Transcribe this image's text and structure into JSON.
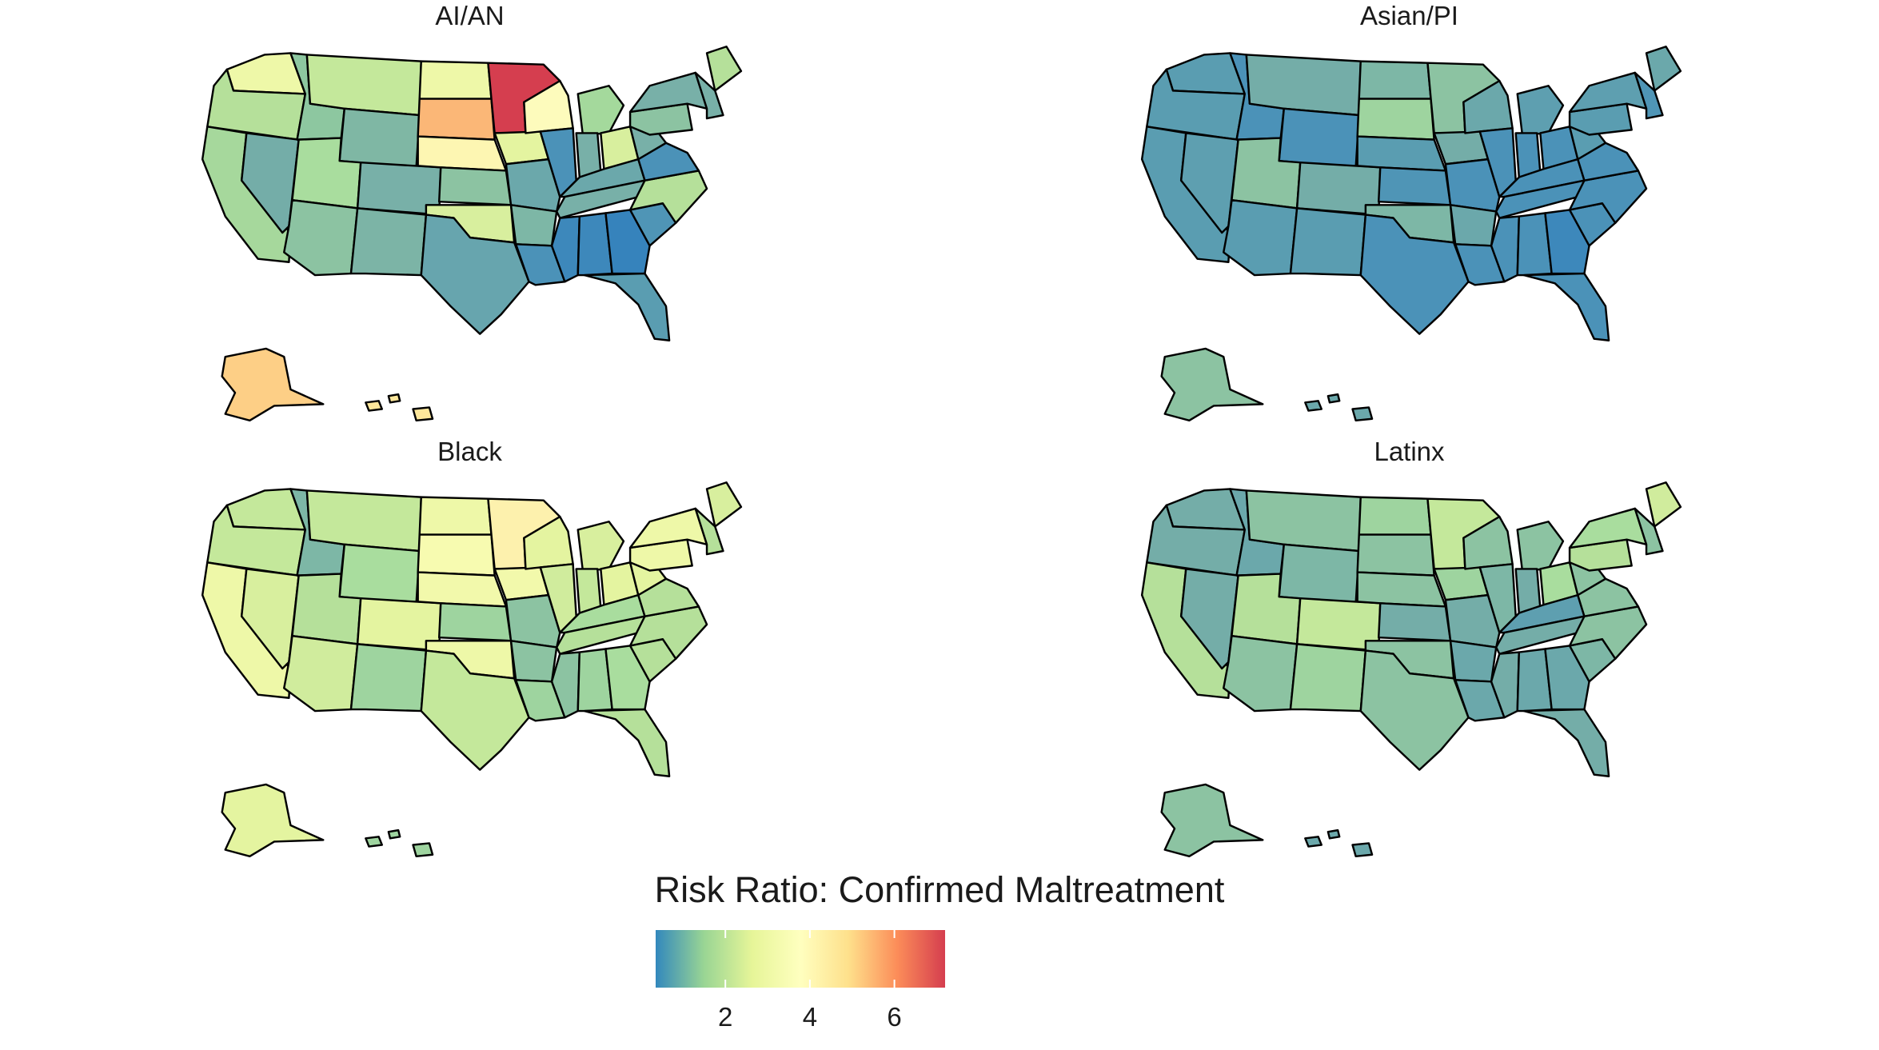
{
  "panels": [
    {
      "title": "AI/AN",
      "states": {
        "WA": "#eef8a8",
        "OR": "#b5e09a",
        "CA": "#a6d89c",
        "NV": "#74ada8",
        "ID": "#8dc7a0",
        "MT": "#c4e89b",
        "WY": "#7fb7a4",
        "UT": "#a9dd9e",
        "CO": "#78b0a8",
        "AZ": "#8cc3a2",
        "NM": "#7cb4a6",
        "ND": "#eef8a8",
        "SD": "#fbb777",
        "NE": "#fdf6b2",
        "KS": "#8cc3a2",
        "OK": "#d8ef9e",
        "TX": "#67a5ae",
        "MN": "#d53e4f",
        "IA": "#e4f4a0",
        "MO": "#6ba8ab",
        "AR": "#7db7a6",
        "LA": "#4b92b8",
        "WI": "#fdfbbc",
        "IL": "#4b92b8",
        "MI": "#a4d99c",
        "IN": "#78b0a8",
        "OH": "#d8ef9e",
        "KY": "#6ba8ab",
        "TN": "#78b0a8",
        "MS": "#3d88bb",
        "AL": "#3d88bb",
        "GA": "#3683bc",
        "FL": "#5a9db1",
        "SC": "#4f95b6",
        "NC": "#b5e09a",
        "VA": "#4b92b8",
        "WV": "#78b0a8",
        "PA": "#8cc3a2",
        "NY": "#78b0a8",
        "ME": "#b5e09a",
        "NE6": "#78b0a8",
        "AK": "#fdcf86",
        "HI": "#fde79b"
      }
    },
    {
      "title": "Asian/PI",
      "states": {
        "WA": "#5a9db1",
        "OR": "#5a9db1",
        "CA": "#5a9db1",
        "NV": "#5e9fb0",
        "ID": "#4b92b8",
        "MT": "#74ada8",
        "WY": "#4b92b8",
        "UT": "#8cc3a2",
        "CO": "#74ada8",
        "AZ": "#5a9db1",
        "NM": "#5a9db1",
        "ND": "#7db7a6",
        "SD": "#9ed49f",
        "NE": "#5a9db1",
        "KS": "#4f95b6",
        "OK": "#7db7a6",
        "TX": "#4b92b8",
        "MN": "#8cc3a2",
        "IA": "#74ada8",
        "MO": "#4b92b8",
        "AR": "#6ba8ab",
        "LA": "#4b92b8",
        "WI": "#6ba8ab",
        "IL": "#4b92b8",
        "MI": "#5e9fb0",
        "IN": "#4b92b8",
        "OH": "#4b92b8",
        "KY": "#4b92b8",
        "TN": "#4b92b8",
        "MS": "#4b92b8",
        "AL": "#4b92b8",
        "GA": "#3d88bb",
        "FL": "#4b92b8",
        "SC": "#4b92b8",
        "NC": "#4b92b8",
        "VA": "#4b92b8",
        "WV": "#5a9db1",
        "PA": "#5a9db1",
        "NY": "#5e9fb0",
        "ME": "#6ba8ab",
        "NE6": "#4f95b6",
        "AK": "#8cc3a2",
        "HI": "#6ba8ab"
      }
    },
    {
      "title": "Black",
      "states": {
        "WA": "#c4e89b",
        "OR": "#c4e89b",
        "CA": "#eef8a8",
        "NV": "#d8ef9e",
        "ID": "#7db7a6",
        "MT": "#c4e89b",
        "WY": "#a9dd9e",
        "UT": "#b5e09a",
        "CO": "#e4f4a0",
        "AZ": "#d0ec9d",
        "NM": "#9ed49f",
        "ND": "#eef8a8",
        "SD": "#f7fbb0",
        "NE": "#f2f9ab",
        "KS": "#9ed49f",
        "OK": "#eef8a8",
        "TX": "#c4e89b",
        "MN": "#fdf1ad",
        "IA": "#f2f9ab",
        "MO": "#8cc3a2",
        "AR": "#8cc3a2",
        "LA": "#9ed49f",
        "WI": "#e4f4a0",
        "IL": "#d0ec9d",
        "MI": "#d8ef9e",
        "IN": "#c4e89b",
        "OH": "#e4f4a0",
        "KY": "#a9dd9e",
        "TN": "#b5e09a",
        "MS": "#8cc3a2",
        "AL": "#9ed49f",
        "GA": "#a9dd9e",
        "FL": "#b5e09a",
        "SC": "#b5e09a",
        "NC": "#b5e09a",
        "VA": "#b5e09a",
        "WV": "#e4f4a0",
        "PA": "#eef8a8",
        "NY": "#eef8a8",
        "ME": "#d8ef9e",
        "NE6": "#b5e09a",
        "AK": "#e4f4a0",
        "HI": "#9ed49f"
      }
    },
    {
      "title": "Latinx",
      "states": {
        "WA": "#74ada8",
        "OR": "#74ada8",
        "CA": "#b5e09a",
        "NV": "#74ada8",
        "ID": "#6ba8ab",
        "MT": "#8cc3a2",
        "WY": "#7db7a6",
        "UT": "#b5e09a",
        "CO": "#c4e89b",
        "AZ": "#8cc3a2",
        "NM": "#9ed49f",
        "ND": "#9ed49f",
        "SD": "#8cc3a2",
        "NE": "#8cc3a2",
        "KS": "#74ada8",
        "OK": "#8cc3a2",
        "TX": "#8cc3a2",
        "MN": "#c4e89b",
        "IA": "#9ed49f",
        "MO": "#74ada8",
        "AR": "#6ba8ab",
        "LA": "#6ba8ab",
        "WI": "#8cc3a2",
        "IL": "#7db7a6",
        "MI": "#8cc3a2",
        "IN": "#74ada8",
        "OH": "#a9dd9e",
        "KY": "#5e9fb0",
        "TN": "#74ada8",
        "MS": "#74ada8",
        "AL": "#6ba8ab",
        "GA": "#6ba8ab",
        "FL": "#74ada8",
        "SC": "#7db7a6",
        "NC": "#8cc3a2",
        "VA": "#8cc3a2",
        "WV": "#8cc3a2",
        "PA": "#b5e09a",
        "NY": "#a9dd9e",
        "ME": "#d0ec9d",
        "NE6": "#8cc3a2",
        "AK": "#8cc3a2",
        "HI": "#6ba8ab"
      }
    }
  ],
  "legend": {
    "title": "Risk Ratio: Confirmed Maltreatment",
    "ticks": [
      {
        "label": "2",
        "value": 2
      },
      {
        "label": "4",
        "value": 4
      },
      {
        "label": "6",
        "value": 6
      }
    ],
    "min": 0.35,
    "max": 7.2,
    "colors": [
      "#3288bd",
      "#99d594",
      "#e6f598",
      "#ffffbf",
      "#fee08b",
      "#fc8d59",
      "#d53e4f"
    ]
  }
}
